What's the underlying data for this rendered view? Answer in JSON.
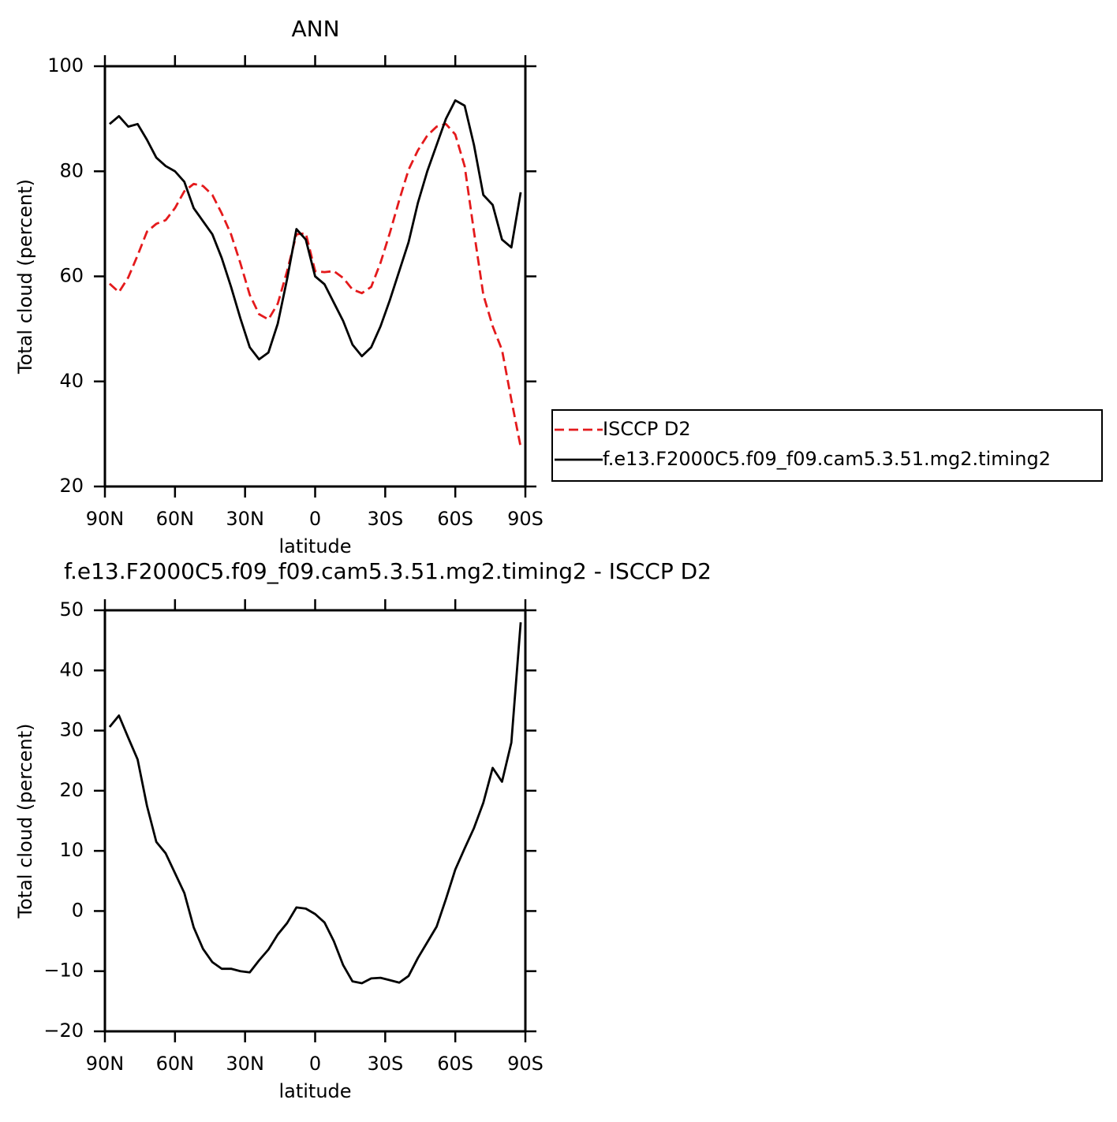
{
  "chart_data": [
    {
      "type": "line",
      "title": "ANN",
      "x_label": "latitude",
      "y_label": "Total cloud (percent)",
      "x": [
        88,
        84,
        80,
        76,
        72,
        68,
        64,
        60,
        56,
        52,
        48,
        44,
        40,
        36,
        32,
        28,
        24,
        20,
        16,
        12,
        8,
        4,
        0,
        -4,
        -8,
        -12,
        -16,
        -20,
        -24,
        -28,
        -32,
        -36,
        -40,
        -44,
        -48,
        -52,
        -56,
        -60,
        -64,
        -68,
        -72,
        -76,
        -80,
        -84,
        -88
      ],
      "xlim": [
        90,
        -90
      ],
      "xticks": [
        {
          "value": 90,
          "label": "90N"
        },
        {
          "value": 60,
          "label": "60N"
        },
        {
          "value": 30,
          "label": "30N"
        },
        0,
        {
          "value": -30,
          "label": "30S"
        },
        {
          "value": -60,
          "label": "60S"
        },
        {
          "value": -90,
          "label": "90S"
        }
      ],
      "ylim": [
        20,
        100
      ],
      "yticks": [
        20,
        40,
        60,
        80,
        100
      ],
      "legend": "right",
      "series": [
        {
          "name": "ISCCP D2",
          "color": "#e41a1c",
          "dashed": true,
          "values": [
            58.6,
            57,
            59.8,
            64,
            68.5,
            70,
            70.7,
            73,
            76.2,
            77.6,
            77.2,
            75.5,
            72,
            68,
            62.5,
            56.5,
            52.8,
            51.8,
            54.8,
            61,
            68,
            68.2,
            61,
            60.8,
            61,
            59.7,
            57.5,
            56.8,
            58,
            62.6,
            68.3,
            74.5,
            80.3,
            84,
            86.8,
            88.5,
            89,
            87,
            81,
            68.5,
            56.5,
            50.5,
            46,
            36.5,
            27.5
          ]
        },
        {
          "name": "f.e13.F2000C5.f09_f09.cam5.3.51.mg2.timing2",
          "color": "#000000",
          "dashed": false,
          "values": [
            89,
            90.5,
            88.5,
            89,
            86,
            82.6,
            81,
            80,
            78,
            73,
            70.5,
            68,
            63.5,
            58,
            52,
            46.5,
            44.2,
            45.5,
            51,
            59.5,
            69,
            67,
            60,
            58.5,
            55,
            51.5,
            47,
            44.8,
            46.5,
            50.5,
            55.5,
            61,
            66.5,
            74,
            80,
            85,
            90,
            93.5,
            92.5,
            85,
            75.5,
            73.6,
            67,
            65.5,
            76
          ]
        }
      ]
    },
    {
      "type": "line",
      "title": "f.e13.F2000C5.f09_f09.cam5.3.51.mg2.timing2 - ISCCP D2",
      "x_label": "latitude",
      "y_label": "Total cloud (percent)",
      "x": [
        88,
        84,
        80,
        76,
        72,
        68,
        64,
        60,
        56,
        52,
        48,
        44,
        40,
        36,
        32,
        28,
        24,
        20,
        16,
        12,
        8,
        4,
        0,
        -4,
        -8,
        -12,
        -16,
        -20,
        -24,
        -28,
        -32,
        -36,
        -40,
        -44,
        -48,
        -52,
        -56,
        -60,
        -64,
        -68,
        -72,
        -76,
        -80,
        -84,
        -88
      ],
      "xlim": [
        90,
        -90
      ],
      "xticks": [
        {
          "value": 90,
          "label": "90N"
        },
        {
          "value": 60,
          "label": "60N"
        },
        {
          "value": 30,
          "label": "30N"
        },
        0,
        {
          "value": -30,
          "label": "30S"
        },
        {
          "value": -60,
          "label": "60S"
        },
        {
          "value": -90,
          "label": "90S"
        }
      ],
      "ylim": [
        -20,
        50
      ],
      "yticks": [
        {
          "value": -20,
          "label": "−20"
        },
        {
          "value": -10,
          "label": "−10"
        },
        0,
        10,
        20,
        30,
        40,
        50
      ],
      "color": "#000000",
      "values": [
        30.6,
        32.5,
        28.8,
        25.2,
        17.5,
        11.5,
        9.6,
        6.3,
        3,
        -2.7,
        -6.3,
        -8.5,
        -9.6,
        -9.6,
        -10,
        -10.2,
        -8.2,
        -6.4,
        -3.9,
        -2,
        0.6,
        0.4,
        -0.5,
        -1.9,
        -5,
        -9,
        -11.7,
        -12,
        -11.2,
        -11.1,
        -11.5,
        -11.9,
        -10.8,
        -7.8,
        -5.2,
        -2.6,
        2,
        6.9,
        10.4,
        13.8,
        18,
        23.8,
        21.5,
        28,
        48
      ]
    }
  ]
}
